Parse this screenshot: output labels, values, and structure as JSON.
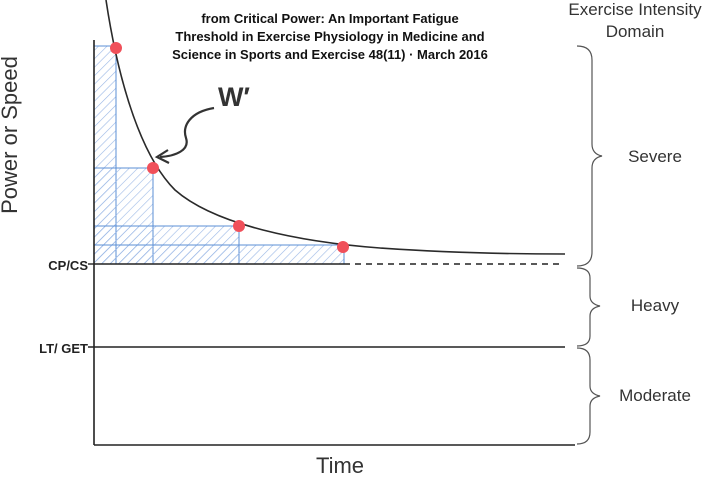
{
  "title": [
    "from Critical Power: An Important Fatigue",
    "Threshold in Exercise Physiology in  Medicine and",
    "Science in Sports and Exercise 48(11) · March 2016"
  ],
  "axes": {
    "y_label": "Power or Speed",
    "x_label": "Time"
  },
  "levels": {
    "cp_label": "CP/CS",
    "lt_label": "LT/ GET"
  },
  "wprime_label": "W′",
  "domains": {
    "header": [
      "Exercise Intensity",
      "Domain"
    ],
    "items": [
      "Severe",
      "Heavy",
      "Moderate"
    ]
  },
  "colors": {
    "curve": "#2a2a2a",
    "points": "#f0505a",
    "rectangles": "#5b8fd6",
    "text": "#333333"
  }
}
